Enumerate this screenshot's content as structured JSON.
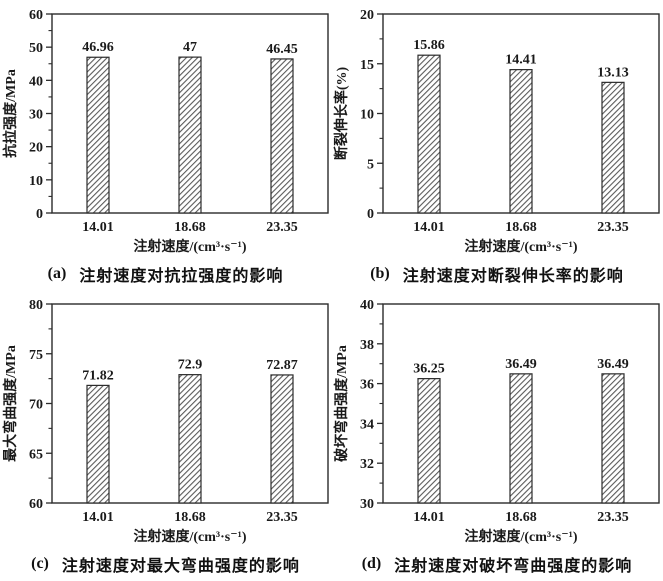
{
  "chart_data": [
    {
      "id": "a",
      "type": "bar",
      "categories": [
        "14.01",
        "18.68",
        "23.35"
      ],
      "values": [
        46.96,
        47,
        46.45
      ],
      "value_labels": [
        "46.96",
        "47",
        "46.45"
      ],
      "xlabel": "注射速度/(cm³·s⁻¹)",
      "ylabel": "抗拉强度/MPa",
      "ylim": [
        0,
        60
      ],
      "ytick_step": 10,
      "minor_per_major": 1,
      "grid": false,
      "legend": "none",
      "bar_fill": "#ffffff",
      "hatch_color": "#5a5a5a",
      "axis_color": "#2b2b2b",
      "caption_tag": "(a)",
      "caption_text": "注射速度对抗拉强度的影响"
    },
    {
      "id": "b",
      "type": "bar",
      "categories": [
        "14.01",
        "18.68",
        "23.35"
      ],
      "values": [
        15.86,
        14.41,
        13.13
      ],
      "value_labels": [
        "15.86",
        "14.41",
        "13.13"
      ],
      "xlabel": "注射速度/(cm³·s⁻¹)",
      "ylabel": "断裂伸长率(%)",
      "ylim": [
        0,
        20
      ],
      "ytick_step": 5,
      "minor_per_major": 1,
      "grid": false,
      "legend": "none",
      "bar_fill": "#ffffff",
      "hatch_color": "#5a5a5a",
      "axis_color": "#2b2b2b",
      "caption_tag": "(b)",
      "caption_text": "注射速度对断裂伸长率的影响"
    },
    {
      "id": "c",
      "type": "bar",
      "categories": [
        "14.01",
        "18.68",
        "23.35"
      ],
      "values": [
        71.82,
        72.9,
        72.87
      ],
      "value_labels": [
        "71.82",
        "72.9",
        "72.87"
      ],
      "xlabel": "注射速度/(cm³·s⁻¹)",
      "ylabel": "最大弯曲强度/MPa",
      "ylim": [
        60,
        80
      ],
      "ytick_step": 5,
      "minor_per_major": 1,
      "grid": false,
      "legend": "none",
      "bar_fill": "#ffffff",
      "hatch_color": "#5a5a5a",
      "axis_color": "#2b2b2b",
      "caption_tag": "(c)",
      "caption_text": "注射速度对最大弯曲强度的影响"
    },
    {
      "id": "d",
      "type": "bar",
      "categories": [
        "14.01",
        "18.68",
        "23.35"
      ],
      "values": [
        36.25,
        36.49,
        36.49
      ],
      "value_labels": [
        "36.25",
        "36.49",
        "36.49"
      ],
      "xlabel": "注射速度/(cm³·s⁻¹)",
      "ylabel": "破坏弯曲强度/MPa",
      "ylim": [
        30,
        40
      ],
      "ytick_step": 2,
      "minor_per_major": 1,
      "grid": false,
      "legend": "none",
      "bar_fill": "#ffffff",
      "hatch_color": "#5a5a5a",
      "axis_color": "#2b2b2b",
      "caption_tag": "(d)",
      "caption_text": "注射速度对破坏弯曲强度的影响"
    }
  ]
}
